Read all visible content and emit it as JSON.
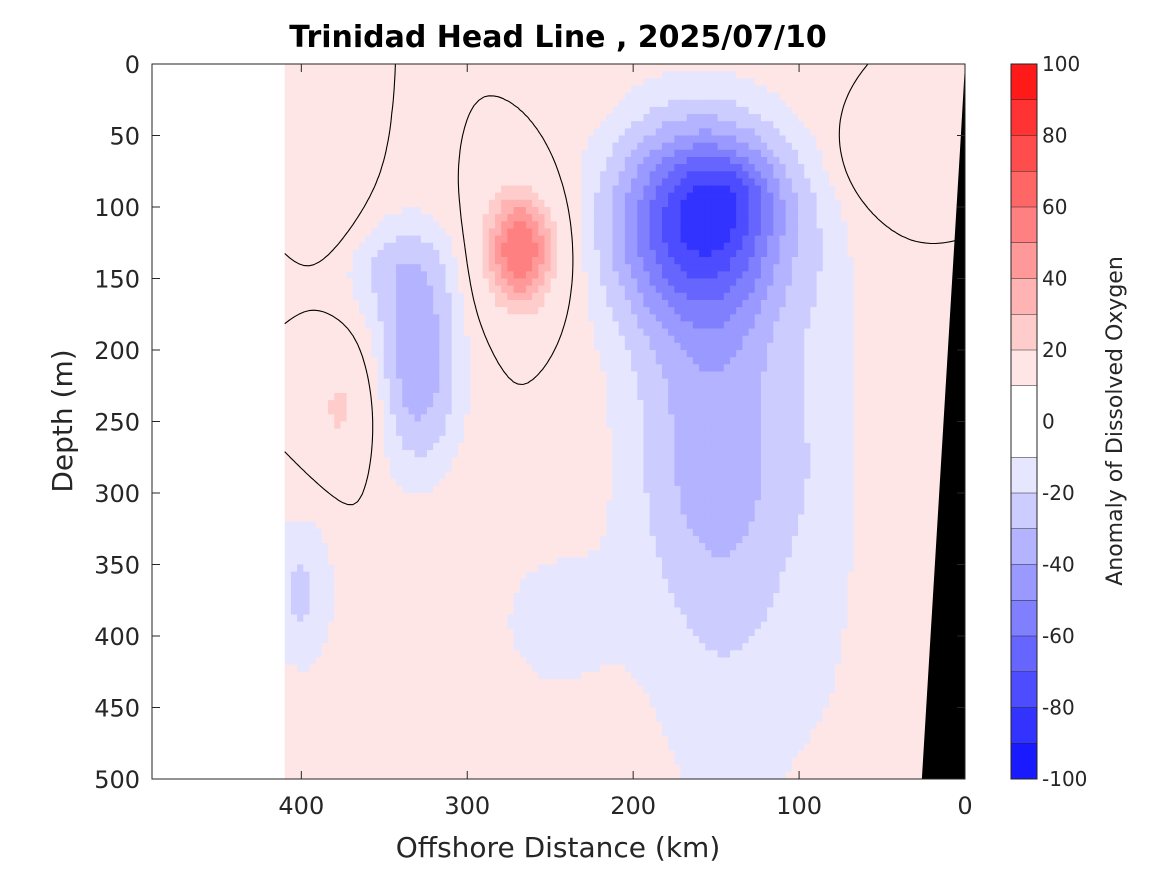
{
  "chart_data": {
    "type": "heatmap",
    "title": "Trinidad Head Line , 2025/07/10",
    "xlabel": "Offshore Distance (km)",
    "ylabel": "Depth (m)",
    "xlim": [
      490,
      0
    ],
    "ylim": [
      0,
      500
    ],
    "x_reversed": true,
    "y_reversed": true,
    "x_ticks": [
      400,
      300,
      200,
      100,
      0
    ],
    "y_ticks": [
      0,
      50,
      100,
      150,
      200,
      250,
      300,
      350,
      400,
      450,
      500
    ],
    "colorbar": {
      "label": "Anomaly of Dissolved Oxygen",
      "range": [
        -100,
        100
      ],
      "ticks": [
        100,
        80,
        60,
        40,
        20,
        0,
        -20,
        -40,
        -60,
        -80,
        -100
      ],
      "levels": [
        -100,
        -90,
        -80,
        -70,
        -60,
        -50,
        -40,
        -30,
        -20,
        -10,
        10,
        20,
        30,
        40,
        50,
        60,
        70,
        80,
        90,
        100
      ],
      "colormap": "blue-white-red",
      "negative_color": "#0000ff",
      "positive_color": "#ff0000",
      "neutral_color": "#ffffff"
    },
    "bathymetry_color": "#000000",
    "features": [
      {
        "kind": "minimum",
        "x": 165,
        "y": 95,
        "value": -85
      },
      {
        "kind": "minimum",
        "x": 150,
        "y": 150,
        "value": -65
      },
      {
        "kind": "maximum",
        "x": 268,
        "y": 130,
        "value": 60
      },
      {
        "kind": "maximum",
        "x": 375,
        "y": 240,
        "value": 25
      },
      {
        "kind": "maximum",
        "x": 50,
        "y": 60,
        "value": 20
      },
      {
        "kind": "minimum",
        "x": 320,
        "y": 200,
        "value": -40
      },
      {
        "kind": "minimum",
        "x": 140,
        "y": 450,
        "value": -15
      }
    ]
  }
}
